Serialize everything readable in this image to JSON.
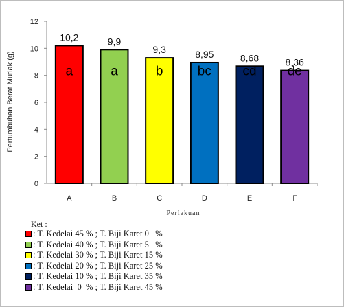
{
  "chart_data": {
    "type": "bar",
    "categories": [
      "A",
      "B",
      "C",
      "D",
      "E",
      "F"
    ],
    "values": [
      10.2,
      9.9,
      9.3,
      8.95,
      8.68,
      8.36
    ],
    "data_labels": [
      "10,2",
      "9,9",
      "9,3",
      "8,95",
      "8,68",
      "8,36"
    ],
    "group_letters": [
      "a",
      "a",
      "b",
      "bc",
      "cd",
      "de"
    ],
    "colors": [
      "#ff0000",
      "#92d050",
      "#ffff00",
      "#0070c0",
      "#002060",
      "#7030a0"
    ],
    "xlabel": "Perlakuan",
    "ylabel": "Pertumbuhan Berat Mutlak (g)",
    "ylim": [
      0,
      12
    ],
    "yticks": [
      0,
      2,
      4,
      6,
      8,
      10,
      12
    ],
    "grid": false
  },
  "legend": {
    "title": "Ket :",
    "items": [
      ": T. Kedelai 45 % ; T. Biji Karet 0   %",
      ": T. Kedelai 40 % ; T. Biji Karet 5   %",
      ": T. Kedelai 30 % ; T. Biji Karet 15 %",
      ": T. Kedelai 20 % ; T. Biji Karet 25 %",
      ": T. Kedelai 10 % ; T. Biji Karet 35 %",
      ": T. Kedelai  0  % ; T. Biji Karet 45 %"
    ]
  }
}
